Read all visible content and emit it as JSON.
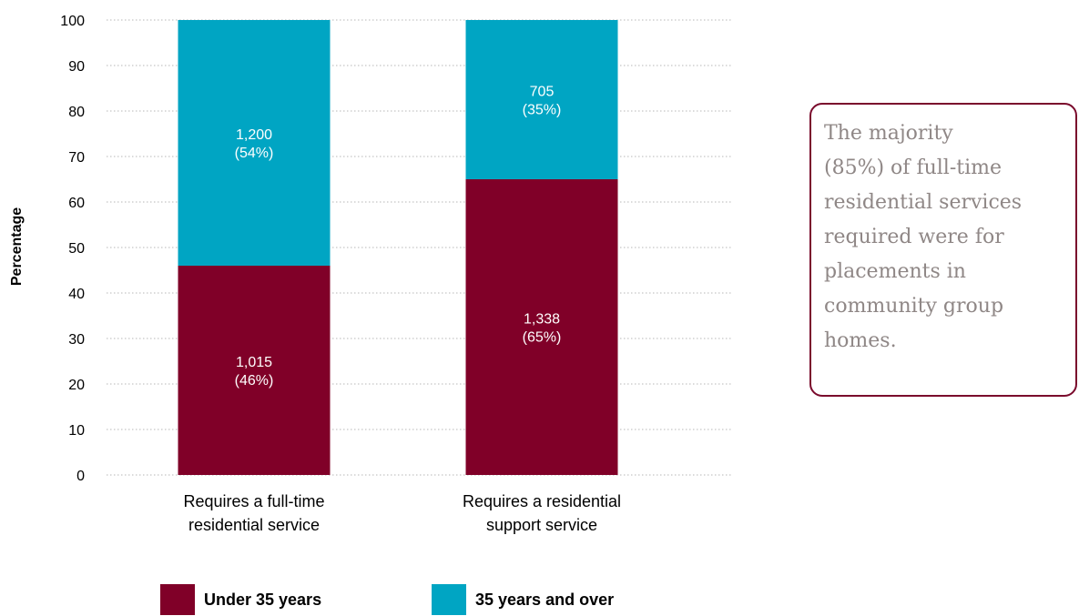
{
  "colors": {
    "under_35": "#800028",
    "over_35": "#00a5c3",
    "grid": "#b7b7b7",
    "callout_border": "#7a0a2c"
  },
  "chart_data": {
    "type": "bar",
    "stacked": true,
    "ylabel": "Percentage",
    "ylim": [
      0,
      100
    ],
    "yticks": [
      "0",
      "10",
      "20",
      "30",
      "40",
      "50",
      "60",
      "70",
      "80",
      "90",
      "100"
    ],
    "grid": true,
    "legend_position": "bottom",
    "categories": [
      [
        "Requires a full-time",
        "residential service"
      ],
      [
        "Requires a residential",
        "support service"
      ]
    ],
    "series": [
      {
        "name": "Under 35 years",
        "color": "#800028",
        "values": [
          46,
          65
        ],
        "counts": [
          "1,015",
          "1,338"
        ],
        "labels": [
          "(46%)",
          "(65%)"
        ]
      },
      {
        "name": "35 years and over",
        "color": "#00a5c3",
        "values": [
          54,
          35
        ],
        "counts": [
          "1,200",
          "705"
        ],
        "labels": [
          "(54%)",
          "(35%)"
        ]
      }
    ]
  },
  "callout": {
    "text_lines": [
      "The majority",
      "(85%) of full-time",
      "residential services",
      "required were for",
      "placements in",
      "community group",
      "homes."
    ]
  }
}
